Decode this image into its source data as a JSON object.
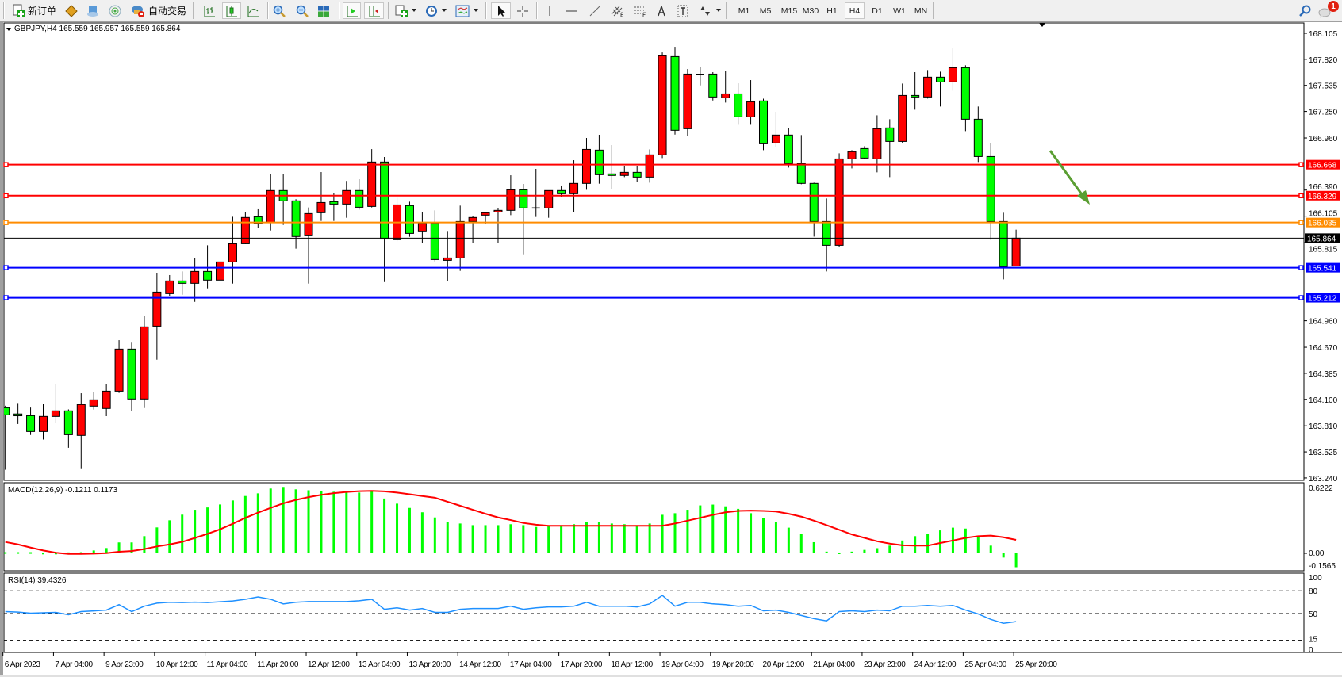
{
  "toolbar": {
    "new_order_label": "新订单",
    "autotrade_label": "自动交易",
    "timeframes": [
      "M1",
      "M5",
      "M15",
      "M30",
      "H1",
      "H4",
      "D1",
      "W1",
      "MN"
    ],
    "active_timeframe": "H4",
    "notification_count": "1",
    "icons": [
      "new-order-icon",
      "market-watch-icon",
      "navigator-icon",
      "signals-icon",
      "autotrade-icon",
      "bar-chart-icon",
      "candlestick-icon",
      "line-chart-icon",
      "zoom-in-icon",
      "zoom-out-icon",
      "tile-windows-icon",
      "autoscroll-icon",
      "chart-shift-icon",
      "indicators-icon",
      "periodicity-icon",
      "templates-icon",
      "cursor-icon",
      "crosshair-icon",
      "vertical-line-icon",
      "horizontal-line-icon",
      "trendline-icon",
      "equidistant-channel-icon",
      "fibonacci-icon",
      "text-icon",
      "text-label-icon",
      "arrows-icon",
      "search-icon",
      "notifications-icon"
    ]
  },
  "chart": {
    "header": "GBPJPY,H4  165.559 165.957 165.559 165.864",
    "colors": {
      "bull": "#ff0000",
      "bear": "#00ff00",
      "resistance": "#ff0000",
      "pivot": "#ff8c00",
      "support": "#0000ff",
      "arrow": "#5a9e32"
    },
    "price_ticks": [
      "168.105",
      "167.820",
      "167.535",
      "167.250",
      "166.960",
      "166.390",
      "166.105",
      "165.815",
      "164.960",
      "164.670",
      "164.385",
      "164.100",
      "163.810",
      "163.525",
      "163.240"
    ],
    "current_price": "165.864",
    "horizontal_lines": [
      {
        "price": "166.668",
        "color": "#ff0000"
      },
      {
        "price": "166.329",
        "color": "#ff0000"
      },
      {
        "price": "166.035",
        "color": "#ff8c00"
      },
      {
        "price": "165.541",
        "color": "#0000ff"
      },
      {
        "price": "165.212",
        "color": "#0000ff"
      }
    ],
    "arrow_direction": "down-right",
    "time_labels": [
      "6 Apr 2023",
      "7 Apr 04:00",
      "9 Apr 23:00",
      "10 Apr 12:00",
      "11 Apr 04:00",
      "11 Apr 20:00",
      "12 Apr 12:00",
      "13 Apr 04:00",
      "13 Apr 20:00",
      "14 Apr 12:00",
      "17 Apr 04:00",
      "17 Apr 20:00",
      "18 Apr 12:00",
      "19 Apr 04:00",
      "19 Apr 20:00",
      "20 Apr 12:00",
      "21 Apr 04:00",
      "23 Apr 23:00",
      "24 Apr 12:00",
      "25 Apr 04:00",
      "25 Apr 20:00"
    ]
  },
  "macd": {
    "label": "MACD(12,26,9) -0.1211 0.1173",
    "scale_labels": [
      "0.6222",
      "0.00",
      "-0.1565"
    ]
  },
  "rsi": {
    "label": "RSI(14) 39.4326",
    "scale_labels": [
      "100",
      "80",
      "50",
      "15",
      "0"
    ]
  },
  "chart_data": {
    "type": "candlestick",
    "symbol": "GBPJPY",
    "timeframe": "H4",
    "ylim": [
      163.24,
      168.105
    ],
    "ohlc": [
      [
        164.008,
        164.03,
        163.33,
        163.93
      ],
      [
        163.94,
        164.06,
        163.83,
        163.92
      ],
      [
        163.921,
        164.01,
        163.71,
        163.748
      ],
      [
        163.748,
        164.05,
        163.66,
        163.913
      ],
      [
        163.913,
        164.27,
        163.84,
        163.974
      ],
      [
        163.974,
        163.99,
        163.57,
        163.713
      ],
      [
        163.705,
        164.167,
        163.346,
        164.043
      ],
      [
        164.026,
        164.176,
        163.988,
        164.095
      ],
      [
        164.0,
        164.27,
        163.916,
        164.19
      ],
      [
        164.19,
        164.748,
        164.17,
        164.65
      ],
      [
        164.65,
        164.72,
        163.97,
        164.104
      ],
      [
        164.104,
        165.017,
        164.005,
        164.893
      ],
      [
        164.901,
        165.485,
        164.534,
        165.274
      ],
      [
        165.257,
        165.46,
        165.228,
        165.396
      ],
      [
        165.396,
        165.5,
        165.245,
        165.37
      ],
      [
        165.37,
        165.65,
        165.167,
        165.5
      ],
      [
        165.5,
        165.786,
        165.315,
        165.405
      ],
      [
        165.405,
        165.682,
        165.28,
        165.604
      ],
      [
        165.604,
        166.098,
        165.367,
        165.803
      ],
      [
        165.803,
        166.15,
        165.8,
        166.09
      ],
      [
        166.098,
        166.18,
        165.98,
        166.026
      ],
      [
        166.035,
        166.57,
        165.948,
        166.385
      ],
      [
        166.385,
        166.57,
        166.009,
        166.272
      ],
      [
        166.272,
        166.29,
        165.749,
        165.882
      ],
      [
        165.89,
        166.2,
        165.367,
        166.133
      ],
      [
        166.142,
        166.587,
        166.052,
        166.254
      ],
      [
        166.263,
        166.361,
        166.052,
        166.237
      ],
      [
        166.237,
        166.49,
        166.087,
        166.385
      ],
      [
        166.385,
        166.509,
        166.176,
        166.202
      ],
      [
        166.211,
        166.838,
        166.2,
        166.697
      ],
      [
        166.697,
        166.752,
        165.384,
        165.856
      ],
      [
        165.847,
        166.306,
        165.83,
        166.228
      ],
      [
        166.22,
        166.263,
        165.879,
        165.916
      ],
      [
        165.934,
        166.15,
        165.812,
        166.029
      ],
      [
        166.029,
        166.168,
        165.61,
        165.63
      ],
      [
        165.621,
        165.934,
        165.393,
        165.647
      ],
      [
        165.647,
        166.22,
        165.506,
        166.046
      ],
      [
        166.046,
        166.107,
        165.812,
        166.09
      ],
      [
        166.116,
        166.15,
        166.017,
        166.142
      ],
      [
        166.15,
        166.194,
        165.812,
        166.168
      ],
      [
        166.168,
        166.552,
        166.116,
        166.393
      ],
      [
        166.393,
        166.457,
        165.679,
        166.194
      ],
      [
        166.194,
        166.622,
        166.096,
        166.194
      ],
      [
        166.194,
        166.385,
        166.087,
        166.385
      ],
      [
        166.385,
        166.44,
        166.312,
        166.35
      ],
      [
        166.35,
        166.717,
        166.147,
        166.463
      ],
      [
        166.463,
        166.96,
        166.393,
        166.835
      ],
      [
        166.827,
        166.995,
        166.46,
        166.558
      ],
      [
        166.567,
        166.882,
        166.399,
        166.55
      ],
      [
        166.55,
        166.653,
        166.532,
        166.584
      ],
      [
        166.584,
        166.653,
        166.48,
        166.532
      ],
      [
        166.532,
        166.835,
        166.471,
        166.775
      ],
      [
        166.775,
        167.896,
        166.74,
        167.859
      ],
      [
        167.85,
        167.957,
        166.997,
        167.044
      ],
      [
        167.061,
        167.714,
        166.98,
        167.659
      ],
      [
        167.656,
        167.74,
        167.535,
        167.656
      ],
      [
        167.659,
        167.68,
        167.37,
        167.408
      ],
      [
        167.399,
        167.697,
        167.347,
        167.442
      ],
      [
        167.442,
        167.558,
        167.104,
        167.191
      ],
      [
        167.191,
        167.593,
        167.104,
        167.356
      ],
      [
        167.365,
        167.39,
        166.827,
        166.896
      ],
      [
        166.905,
        167.246,
        166.862,
        166.992
      ],
      [
        166.992,
        167.07,
        166.636,
        166.68
      ],
      [
        166.68,
        166.992,
        166.454,
        166.463
      ],
      [
        166.463,
        166.471,
        165.881,
        166.046
      ],
      [
        166.046,
        166.298,
        165.5,
        165.786
      ],
      [
        165.786,
        166.792,
        165.769,
        166.731
      ],
      [
        166.731,
        166.827,
        166.627,
        166.81
      ],
      [
        166.844,
        166.87,
        166.726,
        166.74
      ],
      [
        166.731,
        167.208,
        166.584,
        167.061
      ],
      [
        167.07,
        167.165,
        166.532,
        166.922
      ],
      [
        166.922,
        167.555,
        166.905,
        167.425
      ],
      [
        167.425,
        167.68,
        167.269,
        167.408
      ],
      [
        167.408,
        167.703,
        167.391,
        167.625
      ],
      [
        167.625,
        167.685,
        167.304,
        167.573
      ],
      [
        167.573,
        167.949,
        167.477,
        167.729
      ],
      [
        167.729,
        167.755,
        167.035,
        167.165
      ],
      [
        167.165,
        167.304,
        166.697,
        166.757
      ],
      [
        166.757,
        166.905,
        165.847,
        166.046
      ],
      [
        166.046,
        166.142,
        165.413,
        165.552
      ],
      [
        165.559,
        165.957,
        165.559,
        165.864
      ]
    ],
    "macd": {
      "ylim": [
        -0.1565,
        0.6222
      ],
      "histogram": [
        0.01,
        0.01,
        0.01,
        0.005,
        0.005,
        0.008,
        0.01,
        0.025,
        0.046,
        0.095,
        0.095,
        0.15,
        0.226,
        0.288,
        0.337,
        0.38,
        0.4,
        0.426,
        0.461,
        0.5,
        0.523,
        0.565,
        0.579,
        0.558,
        0.55,
        0.545,
        0.537,
        0.537,
        0.53,
        0.545,
        0.478,
        0.433,
        0.396,
        0.358,
        0.313,
        0.276,
        0.26,
        0.246,
        0.246,
        0.246,
        0.254,
        0.246,
        0.23,
        0.238,
        0.246,
        0.254,
        0.27,
        0.27,
        0.26,
        0.254,
        0.246,
        0.26,
        0.336,
        0.35,
        0.38,
        0.418,
        0.425,
        0.41,
        0.388,
        0.35,
        0.306,
        0.27,
        0.224,
        0.17,
        0.097,
        0.015,
        0.007,
        0.015,
        0.03,
        0.045,
        0.067,
        0.112,
        0.15,
        0.17,
        0.2,
        0.224,
        0.216,
        0.142,
        0.067,
        -0.037,
        -0.1211
      ],
      "signal": [
        0.099,
        0.078,
        0.05,
        0.025,
        0.005,
        -0.005,
        -0.005,
        -0.003,
        0.002,
        0.014,
        0.02,
        0.037,
        0.06,
        0.078,
        0.1,
        0.134,
        0.17,
        0.21,
        0.258,
        0.309,
        0.355,
        0.396,
        0.436,
        0.466,
        0.49,
        0.51,
        0.525,
        0.535,
        0.542,
        0.545,
        0.54,
        0.53,
        0.515,
        0.5,
        0.485,
        0.45,
        0.415,
        0.38,
        0.345,
        0.313,
        0.29,
        0.265,
        0.25,
        0.24,
        0.24,
        0.24,
        0.24,
        0.24,
        0.24,
        0.24,
        0.24,
        0.24,
        0.24,
        0.26,
        0.285,
        0.31,
        0.335,
        0.358,
        0.37,
        0.373,
        0.37,
        0.365,
        0.345,
        0.32,
        0.285,
        0.246,
        0.205,
        0.165,
        0.135,
        0.105,
        0.085,
        0.07,
        0.067,
        0.067,
        0.09,
        0.112,
        0.135,
        0.15,
        0.155,
        0.14,
        0.1173
      ]
    },
    "rsi": {
      "ylim": [
        0,
        100
      ],
      "levels": [
        80,
        50,
        15
      ],
      "values": [
        52.6,
        52,
        50.5,
        51,
        51.6,
        48.5,
        52.6,
        53.5,
        54.6,
        61.7,
        52.6,
        59.7,
        63.7,
        64.8,
        64.5,
        65,
        64.5,
        65.5,
        66.5,
        68.8,
        71.9,
        68.8,
        62.7,
        64.8,
        65.8,
        65.8,
        65.8,
        65.8,
        66.8,
        68.8,
        55.6,
        57.6,
        54.6,
        56.6,
        51.6,
        51.6,
        55.6,
        56.6,
        56.6,
        56.6,
        59.7,
        55.6,
        57.6,
        58.7,
        58.7,
        59.7,
        64.8,
        59.7,
        59.7,
        59.7,
        58.7,
        62.7,
        73.9,
        59.7,
        64.8,
        64.8,
        62.7,
        61.7,
        59.7,
        60.7,
        53.6,
        54.6,
        51.6,
        47.5,
        43.4,
        40.4,
        52.6,
        53.6,
        52.6,
        54.6,
        53.6,
        59.7,
        59.7,
        60.7,
        59.7,
        60.7,
        54.6,
        49.5,
        42.4,
        37.3,
        39.43
      ]
    }
  }
}
